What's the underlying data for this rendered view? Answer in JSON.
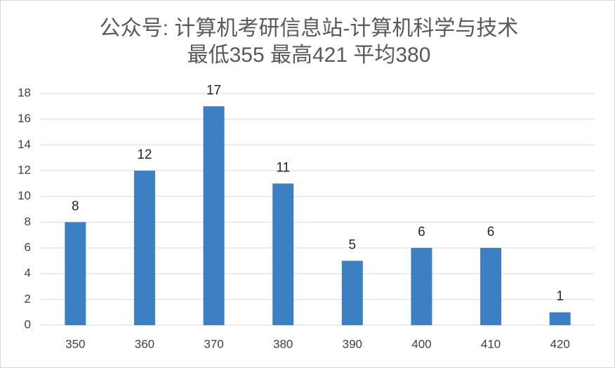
{
  "chart_data": {
    "type": "bar",
    "title": "公众号: 计算机考研信息站-计算机科学与技术",
    "subtitle": "最低355 最高421 平均380",
    "categories": [
      "350",
      "360",
      "370",
      "380",
      "390",
      "400",
      "410",
      "420"
    ],
    "values": [
      8,
      12,
      17,
      11,
      5,
      6,
      6,
      1
    ],
    "color": "#3d7fc3",
    "ylim": [
      0,
      18
    ],
    "yticks": [
      0,
      2,
      4,
      6,
      8,
      10,
      12,
      14,
      16,
      18
    ],
    "grid": true,
    "data_labels": true
  }
}
